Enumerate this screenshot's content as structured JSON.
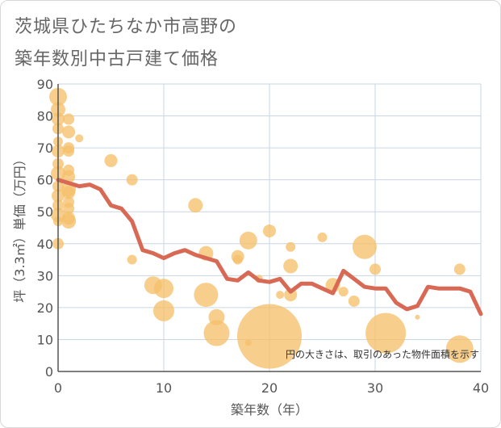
{
  "title_line1": "茨城県ひたちなか市高野の",
  "title_line2": "築年数別中古戸建て価格",
  "note": "円の大きさは、取引のあった物件面積を示す",
  "colors": {
    "bubble": "#f5c06a",
    "line": "#d86a55",
    "grid": "#c9d6e3",
    "axis": "#555555"
  },
  "chart_data": {
    "type": "scatter",
    "xlabel": "築年数（年）",
    "ylabel": "坪（3.3㎡）単価（万円）",
    "xlim": [
      0,
      40
    ],
    "ylim": [
      0,
      90
    ],
    "x_ticks": [
      0,
      10,
      20,
      30,
      40
    ],
    "y_ticks": [
      0,
      10,
      20,
      30,
      40,
      50,
      60,
      70,
      80,
      90
    ],
    "grid": true,
    "points": [
      {
        "x": 0,
        "y": 86,
        "r": 11
      },
      {
        "x": 0,
        "y": 82,
        "r": 9
      },
      {
        "x": 0,
        "y": 79,
        "r": 8
      },
      {
        "x": 0,
        "y": 76,
        "r": 7
      },
      {
        "x": 0,
        "y": 72,
        "r": 6
      },
      {
        "x": 0,
        "y": 69,
        "r": 8
      },
      {
        "x": 0,
        "y": 65,
        "r": 7
      },
      {
        "x": 0,
        "y": 62,
        "r": 9
      },
      {
        "x": 0,
        "y": 58,
        "r": 7
      },
      {
        "x": 0,
        "y": 55,
        "r": 8
      },
      {
        "x": 0,
        "y": 52,
        "r": 7
      },
      {
        "x": 0,
        "y": 49,
        "r": 9
      },
      {
        "x": 0,
        "y": 47,
        "r": 6
      },
      {
        "x": 0,
        "y": 40,
        "r": 7
      },
      {
        "x": 1,
        "y": 79,
        "r": 7
      },
      {
        "x": 1,
        "y": 75,
        "r": 8
      },
      {
        "x": 1,
        "y": 70,
        "r": 7
      },
      {
        "x": 1,
        "y": 69,
        "r": 7
      },
      {
        "x": 1,
        "y": 63,
        "r": 7
      },
      {
        "x": 1,
        "y": 61,
        "r": 8
      },
      {
        "x": 1,
        "y": 57,
        "r": 9
      },
      {
        "x": 1,
        "y": 56,
        "r": 8
      },
      {
        "x": 1,
        "y": 53,
        "r": 7
      },
      {
        "x": 1,
        "y": 51,
        "r": 7
      },
      {
        "x": 1,
        "y": 48,
        "r": 8
      },
      {
        "x": 1,
        "y": 47,
        "r": 9
      },
      {
        "x": 2,
        "y": 73,
        "r": 5
      },
      {
        "x": 5,
        "y": 66,
        "r": 8
      },
      {
        "x": 7,
        "y": 60,
        "r": 7
      },
      {
        "x": 7,
        "y": 35,
        "r": 6
      },
      {
        "x": 9,
        "y": 27,
        "r": 11
      },
      {
        "x": 10,
        "y": 26,
        "r": 12
      },
      {
        "x": 10,
        "y": 19,
        "r": 13
      },
      {
        "x": 13,
        "y": 52,
        "r": 9
      },
      {
        "x": 14,
        "y": 37,
        "r": 9
      },
      {
        "x": 14,
        "y": 24,
        "r": 15
      },
      {
        "x": 15,
        "y": 17,
        "r": 10
      },
      {
        "x": 15,
        "y": 12,
        "r": 16
      },
      {
        "x": 17,
        "y": 36,
        "r": 8
      },
      {
        "x": 17,
        "y": 35,
        "r": 6
      },
      {
        "x": 18,
        "y": 41,
        "r": 11
      },
      {
        "x": 18,
        "y": 9,
        "r": 4
      },
      {
        "x": 19,
        "y": 29,
        "r": 5
      },
      {
        "x": 20,
        "y": 44,
        "r": 8
      },
      {
        "x": 20,
        "y": 11,
        "r": 40
      },
      {
        "x": 21,
        "y": 24,
        "r": 5
      },
      {
        "x": 22,
        "y": 39,
        "r": 6
      },
      {
        "x": 22,
        "y": 33,
        "r": 9
      },
      {
        "x": 22,
        "y": 24,
        "r": 8
      },
      {
        "x": 25,
        "y": 42,
        "r": 6
      },
      {
        "x": 26,
        "y": 27,
        "r": 9
      },
      {
        "x": 27,
        "y": 25,
        "r": 6
      },
      {
        "x": 28,
        "y": 22,
        "r": 7
      },
      {
        "x": 29,
        "y": 39,
        "r": 15
      },
      {
        "x": 30,
        "y": 32,
        "r": 7
      },
      {
        "x": 31,
        "y": 12,
        "r": 25
      },
      {
        "x": 34,
        "y": 17,
        "r": 3
      },
      {
        "x": 38,
        "y": 32,
        "r": 7
      },
      {
        "x": 38,
        "y": 7,
        "r": 17
      }
    ],
    "trend": {
      "name": "",
      "x": [
        0,
        1,
        2,
        3,
        4,
        5,
        6,
        7,
        8,
        9,
        10,
        11,
        12,
        13,
        14,
        15,
        16,
        17,
        18,
        19,
        20,
        21,
        22,
        23,
        24,
        25,
        26,
        27,
        28,
        29,
        30,
        31,
        32,
        33,
        34,
        35,
        36,
        37,
        38,
        39,
        40
      ],
      "y": [
        60,
        59,
        58,
        58.5,
        57,
        52,
        51,
        47,
        38,
        37,
        35.5,
        37,
        38,
        36.5,
        35.5,
        34.5,
        29,
        28.5,
        31,
        28.5,
        28,
        29,
        25,
        27.5,
        27.5,
        26,
        24.5,
        31.5,
        29,
        26.5,
        26,
        26,
        21.5,
        19.5,
        20.5,
        26.5,
        26,
        26,
        26,
        25,
        18
      ]
    }
  }
}
